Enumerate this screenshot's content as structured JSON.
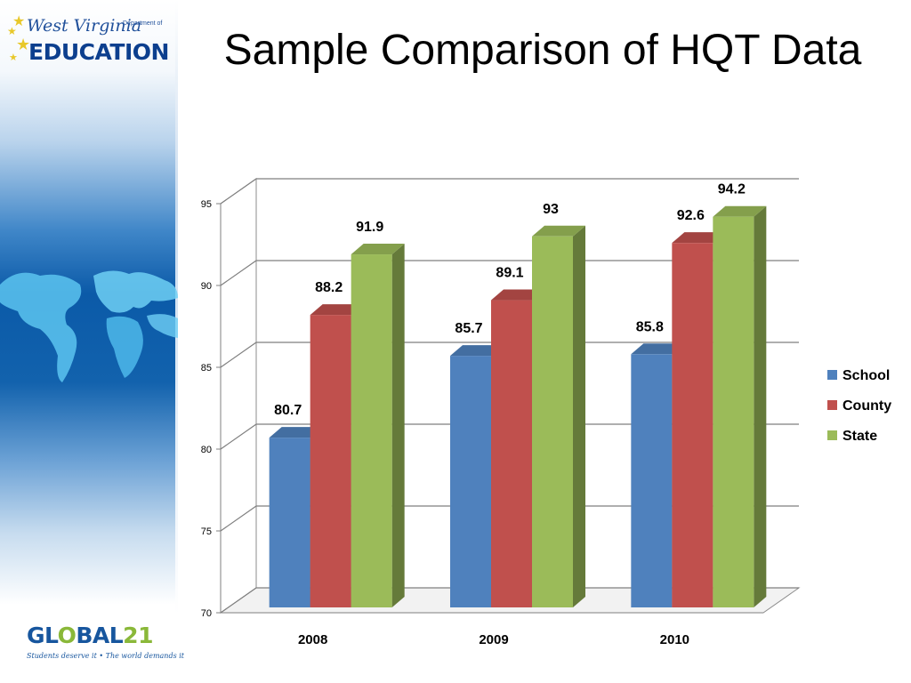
{
  "slide": {
    "title": "Sample Comparison of HQT Data"
  },
  "logos": {
    "wv_script": "West Virginia",
    "wv_dept": "Department of",
    "wv_education": "EDUCATION",
    "global_word": "GL",
    "global_o": "O",
    "global_rest": "BAL",
    "global_num": "21",
    "global_tagline": "Students deserve it • The world demands it"
  },
  "colors": {
    "School": "#4f81bd",
    "County": "#c0504d",
    "State": "#9bbb59"
  },
  "chart_data": {
    "type": "bar",
    "title": "",
    "xlabel": "",
    "ylabel": "",
    "categories": [
      "2008",
      "2009",
      "2010"
    ],
    "series": [
      {
        "name": "School",
        "values": [
          80.7,
          85.7,
          85.8
        ]
      },
      {
        "name": "County",
        "values": [
          88.2,
          89.1,
          92.6
        ]
      },
      {
        "name": "State",
        "values": [
          91.9,
          93,
          94.2
        ]
      }
    ],
    "ylim": [
      70,
      95
    ],
    "yticks": [
      70,
      75,
      80,
      85,
      90,
      95
    ],
    "legend_position": "right",
    "grid": true
  }
}
